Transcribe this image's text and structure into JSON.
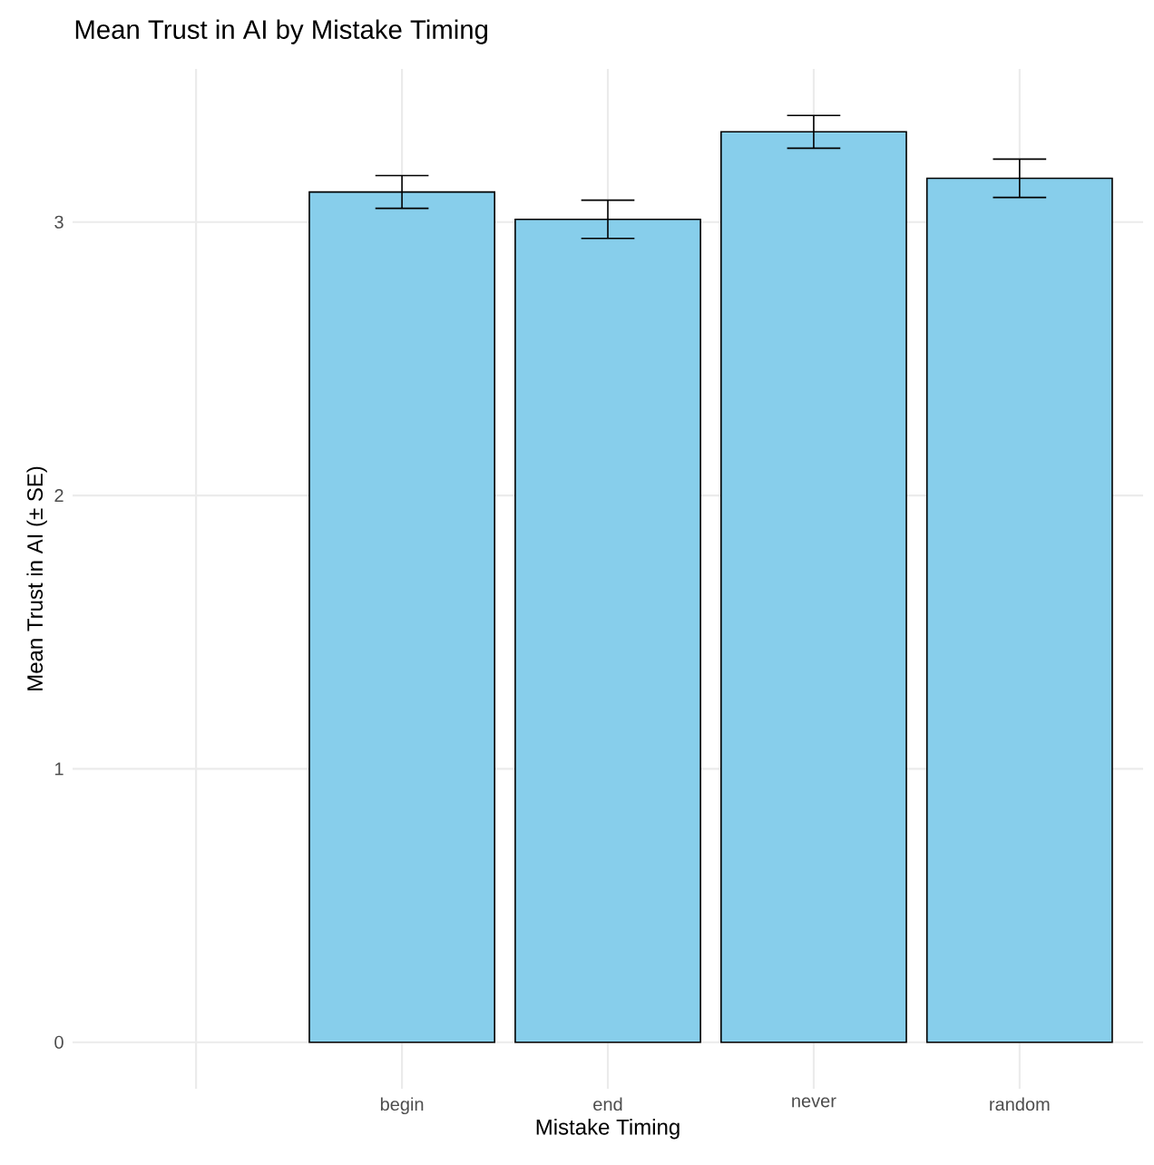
{
  "chart_data": {
    "type": "bar",
    "title": "Mean Trust in AI by Mistake Timing",
    "xlabel": "Mistake Timing",
    "ylabel": "Mean Trust in AI (± SE)",
    "categories": [
      null,
      "begin",
      "end",
      "never",
      "random"
    ],
    "values": [
      null,
      3.11,
      3.01,
      3.33,
      3.16
    ],
    "errors": [
      null,
      0.06,
      0.07,
      0.06,
      0.07
    ],
    "color": "#87ceeb",
    "ylim": [
      -0.17,
      3.56
    ],
    "yticks": [
      0,
      1,
      2,
      3
    ],
    "grid": true
  }
}
